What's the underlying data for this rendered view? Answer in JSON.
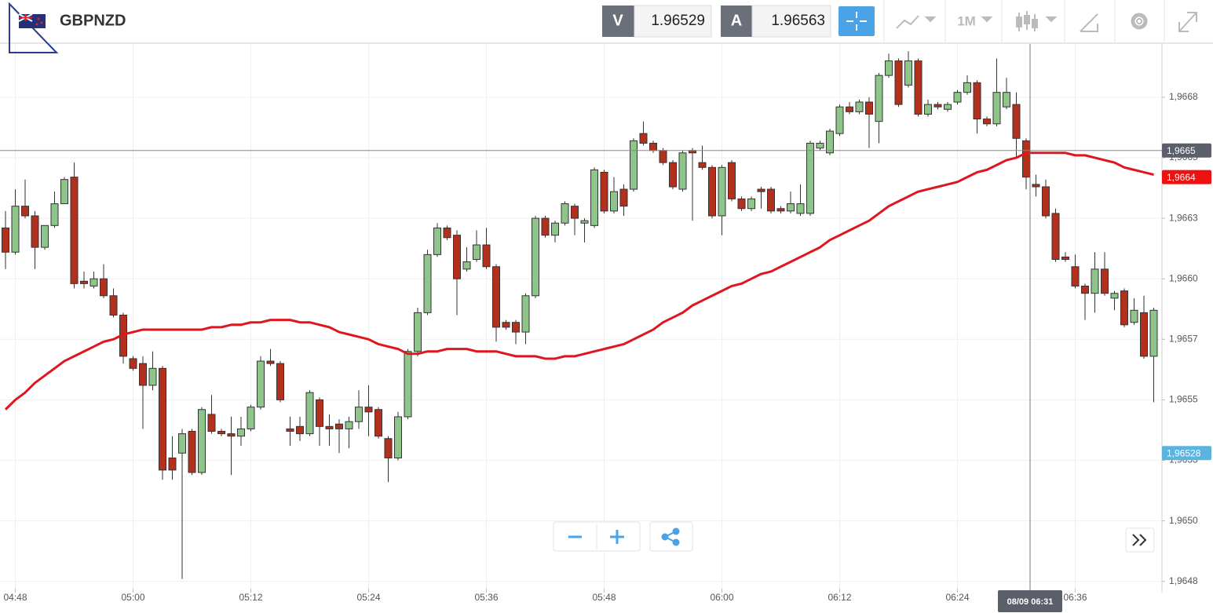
{
  "toolbar": {
    "symbol": "GBPNZD",
    "bid_label": "V",
    "bid": 1.96529,
    "ask_label": "A",
    "ask": 1.96563,
    "timeframe": "1M"
  },
  "chart_data": {
    "type": "candlestick",
    "categories": [
      null,
      "04:48",
      null,
      null,
      null,
      null,
      null,
      null,
      null,
      null,
      null,
      null,
      null,
      "05:00",
      null,
      null,
      null,
      null,
      null,
      null,
      null,
      null,
      null,
      null,
      null,
      "05:12",
      null,
      null,
      null,
      null,
      null,
      null,
      null,
      null,
      null,
      null,
      null,
      "05:24",
      null,
      null,
      null,
      null,
      null,
      null,
      null,
      null,
      null,
      null,
      null,
      "05:36",
      null,
      null,
      null,
      null,
      null,
      null,
      null,
      null,
      null,
      null,
      null,
      "05:48",
      null,
      null,
      null,
      null,
      null,
      null,
      null,
      null,
      null,
      null,
      null,
      "06:00",
      null,
      null,
      null,
      null,
      null,
      null,
      null,
      null,
      null,
      null,
      null,
      "06:12",
      null,
      null,
      null,
      null,
      null,
      null,
      null,
      null,
      null,
      null,
      null,
      "06:24",
      null,
      null,
      null,
      null,
      null,
      null,
      null,
      null,
      null,
      null,
      null,
      "06:36",
      null,
      null,
      null,
      null,
      null,
      null,
      null,
      null
    ],
    "candles": [
      [
        1.96621,
        1.96628,
        1.96604,
        1.96611
      ],
      [
        1.96611,
        1.96637,
        1.9661,
        1.9663
      ],
      [
        1.9663,
        1.96641,
        1.96625,
        1.96626
      ],
      [
        1.96626,
        1.96628,
        1.96604,
        1.96613
      ],
      [
        1.96613,
        1.96622,
        1.96612,
        1.96622
      ],
      [
        1.96622,
        1.96636,
        1.96621,
        1.96631
      ],
      [
        1.96631,
        1.96642,
        1.96631,
        1.96641
      ],
      [
        1.96642,
        1.96648,
        1.96596,
        1.96598
      ],
      [
        1.96599,
        1.96603,
        1.96596,
        1.96598
      ],
      [
        1.96597,
        1.96603,
        1.96596,
        1.966
      ],
      [
        1.966,
        1.96606,
        1.96592,
        1.96593
      ],
      [
        1.96593,
        1.96596,
        1.96584,
        1.96585
      ],
      [
        1.96585,
        1.96586,
        1.96565,
        1.96568
      ],
      [
        1.96567,
        1.96568,
        1.96562,
        1.96563
      ],
      [
        1.96565,
        1.96568,
        1.96538,
        1.96556
      ],
      [
        1.96556,
        1.9657,
        1.96554,
        1.96563
      ],
      [
        1.96563,
        1.96564,
        1.96517,
        1.96521
      ],
      [
        1.96526,
        1.96535,
        1.96517,
        1.96521
      ],
      [
        1.96528,
        1.96538,
        1.96476,
        1.96536
      ],
      [
        1.96537,
        1.96538,
        1.96519,
        1.9652
      ],
      [
        1.9652,
        1.96547,
        1.96519,
        1.96546
      ],
      [
        1.96544,
        1.96552,
        1.96536,
        1.96537
      ],
      [
        1.96537,
        1.96538,
        1.96535,
        1.96536
      ],
      [
        1.96536,
        1.96543,
        1.96519,
        1.96535
      ],
      [
        1.96535,
        1.96543,
        1.96531,
        1.96538
      ],
      [
        1.96538,
        1.96548,
        1.96537,
        1.96547
      ],
      [
        1.96547,
        1.96568,
        1.96546,
        1.96566
      ],
      [
        1.96566,
        1.96571,
        1.96564,
        1.96565
      ],
      [
        1.96565,
        1.96566,
        1.96549,
        1.9655
      ],
      [
        1.96538,
        1.96543,
        1.96531,
        1.96537
      ],
      [
        1.96539,
        1.96543,
        1.96533,
        1.96536
      ],
      [
        1.96536,
        1.96554,
        1.96535,
        1.96553
      ],
      [
        1.9655,
        1.96551,
        1.96531,
        1.96539
      ],
      [
        1.96539,
        1.96544,
        1.96531,
        1.96538
      ],
      [
        1.9654,
        1.96542,
        1.96528,
        1.96538
      ],
      [
        1.96538,
        1.96543,
        1.9653,
        1.96541
      ],
      [
        1.96541,
        1.96554,
        1.96538,
        1.96547
      ],
      [
        1.96547,
        1.96556,
        1.96535,
        1.96545
      ],
      [
        1.96546,
        1.96547,
        1.96534,
        1.96535
      ],
      [
        1.96534,
        1.96535,
        1.96516,
        1.96526
      ],
      [
        1.96526,
        1.96545,
        1.96525,
        1.96543
      ],
      [
        1.96543,
        1.96571,
        1.96542,
        1.9657
      ],
      [
        1.9657,
        1.96588,
        1.96568,
        1.96586
      ],
      [
        1.96586,
        1.96612,
        1.96585,
        1.9661
      ],
      [
        1.9661,
        1.96623,
        1.96609,
        1.96621
      ],
      [
        1.96621,
        1.96622,
        1.96616,
        1.96617
      ],
      [
        1.96618,
        1.9662,
        1.96585,
        1.966
      ],
      [
        1.96604,
        1.96613,
        1.96603,
        1.96607
      ],
      [
        1.96608,
        1.9662,
        1.96607,
        1.96614
      ],
      [
        1.96614,
        1.96621,
        1.96604,
        1.96605
      ],
      [
        1.96605,
        1.96606,
        1.96574,
        1.9658
      ],
      [
        1.96582,
        1.96583,
        1.96579,
        1.9658
      ],
      [
        1.96582,
        1.96583,
        1.96573,
        1.96578
      ],
      [
        1.96578,
        1.96594,
        1.96573,
        1.96593
      ],
      [
        1.96593,
        1.96626,
        1.96592,
        1.96625
      ],
      [
        1.96625,
        1.96626,
        1.96617,
        1.96618
      ],
      [
        1.96618,
        1.96624,
        1.96615,
        1.96623
      ],
      [
        1.96623,
        1.96632,
        1.96622,
        1.96631
      ],
      [
        1.9663,
        1.96631,
        1.96618,
        1.96625
      ],
      [
        1.96623,
        1.96625,
        1.96615,
        1.96624
      ],
      [
        1.96622,
        1.96646,
        1.96621,
        1.96645
      ],
      [
        1.96644,
        1.96645,
        1.96627,
        1.96628
      ],
      [
        1.96628,
        1.96642,
        1.96627,
        1.96636
      ],
      [
        1.96637,
        1.96639,
        1.96626,
        1.9663
      ],
      [
        1.96637,
        1.96658,
        1.96636,
        1.96657
      ],
      [
        1.9666,
        1.96665,
        1.96655,
        1.96656
      ],
      [
        1.96656,
        1.96657,
        1.96652,
        1.96653
      ],
      [
        1.96653,
        1.96654,
        1.96647,
        1.96648
      ],
      [
        1.96648,
        1.96649,
        1.96637,
        1.96638
      ],
      [
        1.96637,
        1.96653,
        1.96636,
        1.96652
      ],
      [
        1.96653,
        1.96654,
        1.96624,
        1.96652
      ],
      [
        1.96648,
        1.96655,
        1.96645,
        1.96646
      ],
      [
        1.96646,
        1.96647,
        1.96625,
        1.96626
      ],
      [
        1.96626,
        1.96647,
        1.96618,
        1.96646
      ],
      [
        1.96648,
        1.96649,
        1.96632,
        1.96633
      ],
      [
        1.96633,
        1.96634,
        1.96628,
        1.96629
      ],
      [
        1.96629,
        1.96634,
        1.96628,
        1.96633
      ],
      [
        1.96637,
        1.96638,
        1.96629,
        1.96636
      ],
      [
        1.96637,
        1.96638,
        1.96627,
        1.96628
      ],
      [
        1.96629,
        1.9663,
        1.96627,
        1.96628
      ],
      [
        1.96628,
        1.96636,
        1.96627,
        1.96631
      ],
      [
        1.96627,
        1.96639,
        1.96626,
        1.96631
      ],
      [
        1.96627,
        1.96657,
        1.96626,
        1.96656
      ],
      [
        1.96654,
        1.96657,
        1.96653,
        1.96656
      ],
      [
        1.96652,
        1.96662,
        1.96651,
        1.96661
      ],
      [
        1.9666,
        1.96672,
        1.96659,
        1.96671
      ],
      [
        1.96671,
        1.96673,
        1.96668,
        1.96669
      ],
      [
        1.96669,
        1.96674,
        1.96668,
        1.96673
      ],
      [
        1.96673,
        1.96675,
        1.96654,
        1.96668
      ],
      [
        1.96665,
        1.96685,
        1.96656,
        1.96684
      ],
      [
        1.96684,
        1.96693,
        1.96683,
        1.9669
      ],
      [
        1.9669,
        1.96691,
        1.96671,
        1.96672
      ],
      [
        1.9668,
        1.96694,
        1.96679,
        1.9669
      ],
      [
        1.9669,
        1.96691,
        1.96667,
        1.96668
      ],
      [
        1.96668,
        1.96674,
        1.96667,
        1.96672
      ],
      [
        1.96672,
        1.96673,
        1.9667,
        1.96671
      ],
      [
        1.9667,
        1.96673,
        1.96669,
        1.96672
      ],
      [
        1.96673,
        1.96678,
        1.96672,
        1.96677
      ],
      [
        1.96677,
        1.96684,
        1.96676,
        1.96681
      ],
      [
        1.96681,
        1.96682,
        1.9666,
        1.96666
      ],
      [
        1.96666,
        1.96667,
        1.96663,
        1.96664
      ],
      [
        1.96664,
        1.96691,
        1.96663,
        1.96677
      ],
      [
        1.96671,
        1.96683,
        1.9667,
        1.96677
      ],
      [
        1.96672,
        1.96677,
        1.9665,
        1.96658
      ],
      [
        1.96657,
        1.96658,
        1.96637,
        1.96642
      ],
      [
        1.96639,
        1.96643,
        1.96634,
        1.96638
      ],
      [
        1.96638,
        1.96641,
        1.96625,
        1.96626
      ],
      [
        1.96627,
        1.96629,
        1.96607,
        1.96608
      ],
      [
        1.96609,
        1.96611,
        1.96607,
        1.96608
      ],
      [
        1.96605,
        1.9661,
        1.96596,
        1.96597
      ],
      [
        1.96597,
        1.96598,
        1.96583,
        1.96594
      ],
      [
        1.96594,
        1.96611,
        1.96586,
        1.96604
      ],
      [
        1.96604,
        1.96611,
        1.96593,
        1.96594
      ],
      [
        1.96592,
        1.96595,
        1.96587,
        1.96594
      ],
      [
        1.96595,
        1.96596,
        1.9658,
        1.96581
      ],
      [
        1.96582,
        1.96592,
        1.96581,
        1.96587
      ],
      [
        1.96586,
        1.96593,
        1.96567,
        1.96568
      ],
      [
        1.96568,
        1.96588,
        1.96549,
        1.96587
      ]
    ],
    "up_color": "#8fc48a",
    "down_color": "#b3301d",
    "ma": {
      "color": "#e0161e",
      "values": [
        1.96546,
        1.9655,
        1.96553,
        1.96557,
        1.9656,
        1.96563,
        1.96566,
        1.96568,
        1.9657,
        1.96572,
        1.96574,
        1.96575,
        1.96577,
        1.96578,
        1.96579,
        1.96579,
        1.96579,
        1.96579,
        1.96579,
        1.96579,
        1.96579,
        1.9658,
        1.9658,
        1.96581,
        1.96581,
        1.96582,
        1.96582,
        1.96583,
        1.96583,
        1.96583,
        1.96582,
        1.96582,
        1.96581,
        1.9658,
        1.96578,
        1.96577,
        1.96576,
        1.96575,
        1.96573,
        1.96572,
        1.96571,
        1.96569,
        1.96569,
        1.9657,
        1.9657,
        1.96571,
        1.96571,
        1.96571,
        1.9657,
        1.9657,
        1.9657,
        1.96569,
        1.96568,
        1.96568,
        1.96568,
        1.96567,
        1.96567,
        1.96568,
        1.96568,
        1.96569,
        1.9657,
        1.96571,
        1.96572,
        1.96573,
        1.96575,
        1.96577,
        1.96579,
        1.96582,
        1.96584,
        1.96586,
        1.96589,
        1.96591,
        1.96593,
        1.96595,
        1.96597,
        1.96598,
        1.966,
        1.96602,
        1.96603,
        1.96605,
        1.96607,
        1.96609,
        1.96611,
        1.96613,
        1.96616,
        1.96618,
        1.9662,
        1.96622,
        1.96624,
        1.96627,
        1.9663,
        1.96632,
        1.96634,
        1.96636,
        1.96637,
        1.96638,
        1.96639,
        1.9664,
        1.96642,
        1.96644,
        1.96645,
        1.96647,
        1.96649,
        1.9665,
        1.96652,
        1.96652,
        1.96652,
        1.96652,
        1.96652,
        1.96651,
        1.96651,
        1.9665,
        1.96649,
        1.96648,
        1.96646,
        1.96645,
        1.96644,
        1.96643
      ]
    },
    "ylim": [
      1.96472,
      1.96697
    ],
    "yticks": [
      {
        "value": 1.96475,
        "label": "1,9648"
      },
      {
        "value": 1.965,
        "label": "1,9650"
      },
      {
        "value": 1.96525,
        "label": "1,9653"
      },
      {
        "value": 1.9655,
        "label": "1,9655"
      },
      {
        "value": 1.96575,
        "label": "1,9657"
      },
      {
        "value": 1.966,
        "label": "1,9660"
      },
      {
        "value": 1.96625,
        "label": "1,9663"
      },
      {
        "value": 1.9665,
        "label": "1,9665"
      },
      {
        "value": 1.96675,
        "label": "1,9668"
      }
    ],
    "grid": true,
    "price_labels": [
      {
        "value": 1.96653,
        "label": "1,9665",
        "color": "#5b5f6a"
      },
      {
        "value": 1.96642,
        "label": "1,9664",
        "color": "#ee1111"
      },
      {
        "value": 1.96528,
        "label": "1,96528",
        "color": "#5bb4df"
      }
    ],
    "crosshair_label": "08/09 06:31"
  }
}
